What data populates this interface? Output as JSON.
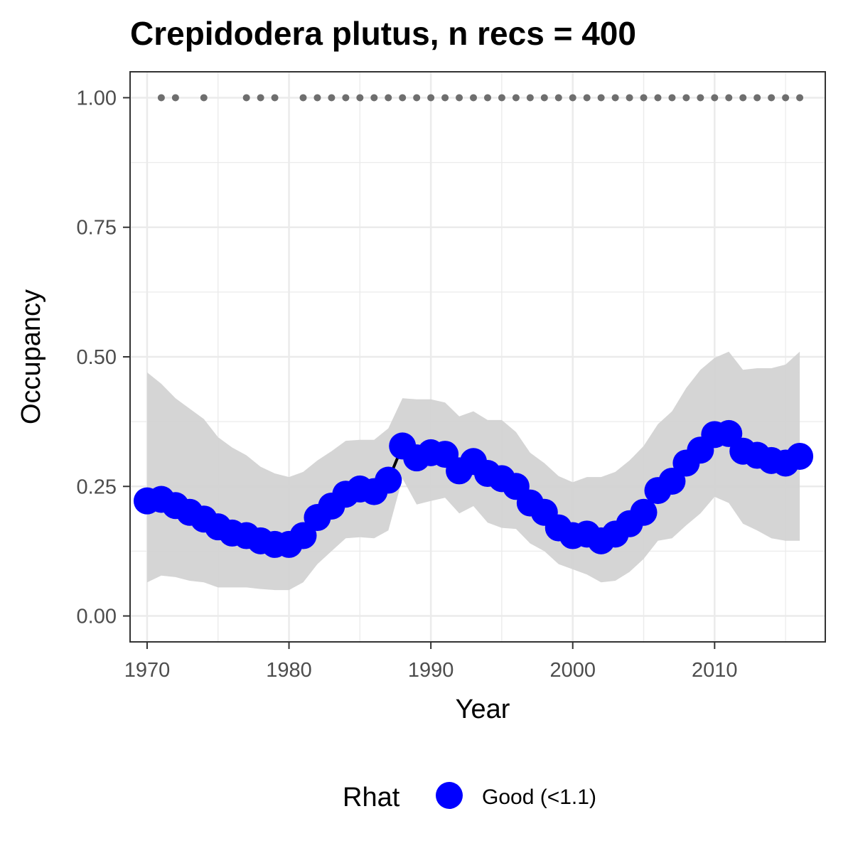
{
  "chart_data": {
    "type": "line",
    "title": "Crepidodera plutus, n recs = 400",
    "xlabel": "Year",
    "ylabel": "Occupancy",
    "xlim": [
      1968.8,
      2017.8
    ],
    "ylim": [
      -0.05,
      1.05
    ],
    "x_ticks": [
      1970,
      1980,
      1990,
      2000,
      2010
    ],
    "x_tick_labels": [
      "1970",
      "1980",
      "1990",
      "2000",
      "2010"
    ],
    "y_ticks": [
      0,
      0.25,
      0.5,
      0.75,
      1.0
    ],
    "y_tick_labels": [
      "0.00",
      "0.25",
      "0.50",
      "0.75",
      "1.00"
    ],
    "grid": true,
    "colors": {
      "point": "#0000ff",
      "line": "#000000",
      "ribbon": "#d3d3d3",
      "record_dot": "#6e6e6e",
      "grid": "#ebebeb",
      "panel_border": "#333333"
    },
    "x": [
      1970,
      1971,
      1972,
      1973,
      1974,
      1975,
      1976,
      1977,
      1978,
      1979,
      1980,
      1981,
      1982,
      1983,
      1984,
      1985,
      1986,
      1987,
      1988,
      1989,
      1990,
      1991,
      1992,
      1993,
      1994,
      1995,
      1996,
      1997,
      1998,
      1999,
      2000,
      2001,
      2002,
      2003,
      2004,
      2005,
      2006,
      2007,
      2008,
      2009,
      2010,
      2011,
      2012,
      2013,
      2014,
      2015,
      2016
    ],
    "series": [
      {
        "values": [
          0.222,
          0.225,
          0.213,
          0.2,
          0.187,
          0.172,
          0.16,
          0.155,
          0.145,
          0.138,
          0.138,
          0.155,
          0.19,
          0.212,
          0.235,
          0.245,
          0.24,
          0.262,
          0.328,
          0.305,
          0.315,
          0.312,
          0.28,
          0.298,
          0.275,
          0.265,
          0.25,
          0.218,
          0.2,
          0.17,
          0.155,
          0.158,
          0.145,
          0.158,
          0.178,
          0.2,
          0.242,
          0.26,
          0.295,
          0.32,
          0.35,
          0.352,
          0.318,
          0.31,
          0.3,
          0.295,
          0.308
        ],
        "lower": [
          0.065,
          0.078,
          0.075,
          0.068,
          0.065,
          0.055,
          0.055,
          0.055,
          0.052,
          0.05,
          0.05,
          0.065,
          0.1,
          0.125,
          0.15,
          0.152,
          0.15,
          0.165,
          0.265,
          0.215,
          0.222,
          0.228,
          0.198,
          0.212,
          0.18,
          0.17,
          0.168,
          0.14,
          0.125,
          0.1,
          0.09,
          0.08,
          0.065,
          0.068,
          0.085,
          0.11,
          0.145,
          0.15,
          0.175,
          0.198,
          0.23,
          0.218,
          0.178,
          0.165,
          0.15,
          0.145,
          0.145
        ],
        "upper": [
          0.47,
          0.448,
          0.42,
          0.4,
          0.38,
          0.345,
          0.325,
          0.31,
          0.288,
          0.275,
          0.268,
          0.278,
          0.3,
          0.318,
          0.338,
          0.34,
          0.34,
          0.362,
          0.42,
          0.418,
          0.418,
          0.412,
          0.385,
          0.395,
          0.378,
          0.378,
          0.355,
          0.315,
          0.295,
          0.27,
          0.258,
          0.268,
          0.268,
          0.278,
          0.3,
          0.328,
          0.37,
          0.395,
          0.44,
          0.475,
          0.498,
          0.51,
          0.475,
          0.478,
          0.478,
          0.485,
          0.51
        ],
        "line_start_year": 1987
      }
    ],
    "records": {
      "y": 1.0,
      "years": [
        1971,
        1972,
        1974,
        1977,
        1978,
        1979,
        1981,
        1982,
        1983,
        1984,
        1985,
        1986,
        1987,
        1988,
        1989,
        1990,
        1991,
        1992,
        1993,
        1994,
        1995,
        1996,
        1997,
        1998,
        1999,
        2000,
        2001,
        2002,
        2003,
        2004,
        2005,
        2006,
        2007,
        2008,
        2009,
        2010,
        2011,
        2012,
        2013,
        2014,
        2015,
        2016
      ]
    },
    "legend": {
      "title": "Rhat",
      "placement": "bottom",
      "items": [
        {
          "label": "Good (<1.1)"
        }
      ]
    }
  }
}
